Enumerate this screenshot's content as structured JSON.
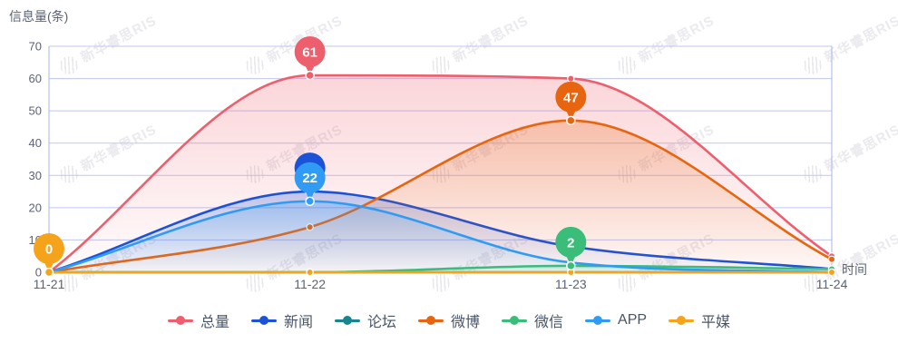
{
  "watermark": {
    "text": "新华睿思RIS"
  },
  "colors": {
    "grid_line": "#bfc7f0",
    "axis_line": "#aab4ea",
    "tick_text": "#5b6377",
    "legend_text": "#4a5568",
    "background": "#ffffff",
    "watermark": "#d9d9e2",
    "marker_label_text": "#ffffff"
  },
  "chart_data": {
    "type": "line",
    "title": "",
    "ylabel": "信息量(条)",
    "xlabel": "时间",
    "categories": [
      "11-21",
      "11-22",
      "11-23",
      "11-24"
    ],
    "ylim": [
      0,
      70
    ],
    "yticks": [
      0,
      10,
      20,
      30,
      40,
      50,
      60,
      70
    ],
    "grid": true,
    "smooth": true,
    "legend_position": "bottom",
    "series": [
      {
        "key": "total",
        "name": "总量",
        "color": "#ee5f6d",
        "values": [
          0,
          61,
          60,
          5
        ]
      },
      {
        "key": "news",
        "name": "新闻",
        "color": "#1a52d8",
        "values": [
          0,
          25,
          8,
          1
        ]
      },
      {
        "key": "forum",
        "name": "论坛",
        "color": "#18848e",
        "values": [
          0,
          0,
          0,
          0
        ]
      },
      {
        "key": "weibo",
        "name": "微博",
        "color": "#e8650f",
        "values": [
          0,
          14,
          47,
          4
        ]
      },
      {
        "key": "wechat",
        "name": "微信",
        "color": "#3bbd7a",
        "values": [
          0,
          0,
          2,
          1
        ]
      },
      {
        "key": "app",
        "name": "APP",
        "color": "#2f9bf4",
        "values": [
          0,
          22,
          3,
          0
        ]
      },
      {
        "key": "print",
        "name": "平媒",
        "color": "#f5a31a",
        "values": [
          0,
          0,
          0,
          0
        ]
      }
    ],
    "markers": [
      {
        "series_key": "print",
        "category_index": 0,
        "value": 0,
        "label": "0"
      },
      {
        "series_key": "total",
        "category_index": 1,
        "value": 61,
        "label": "61"
      },
      {
        "series_key": "news",
        "category_index": 1,
        "value": 25,
        "label": "25"
      },
      {
        "series_key": "weibo",
        "category_index": 2,
        "value": 47,
        "label": "47"
      },
      {
        "series_key": "wechat",
        "category_index": 2,
        "value": 2,
        "label": "2"
      },
      {
        "series_key": "app",
        "category_index": 1,
        "value": 22,
        "label": "22"
      }
    ]
  }
}
